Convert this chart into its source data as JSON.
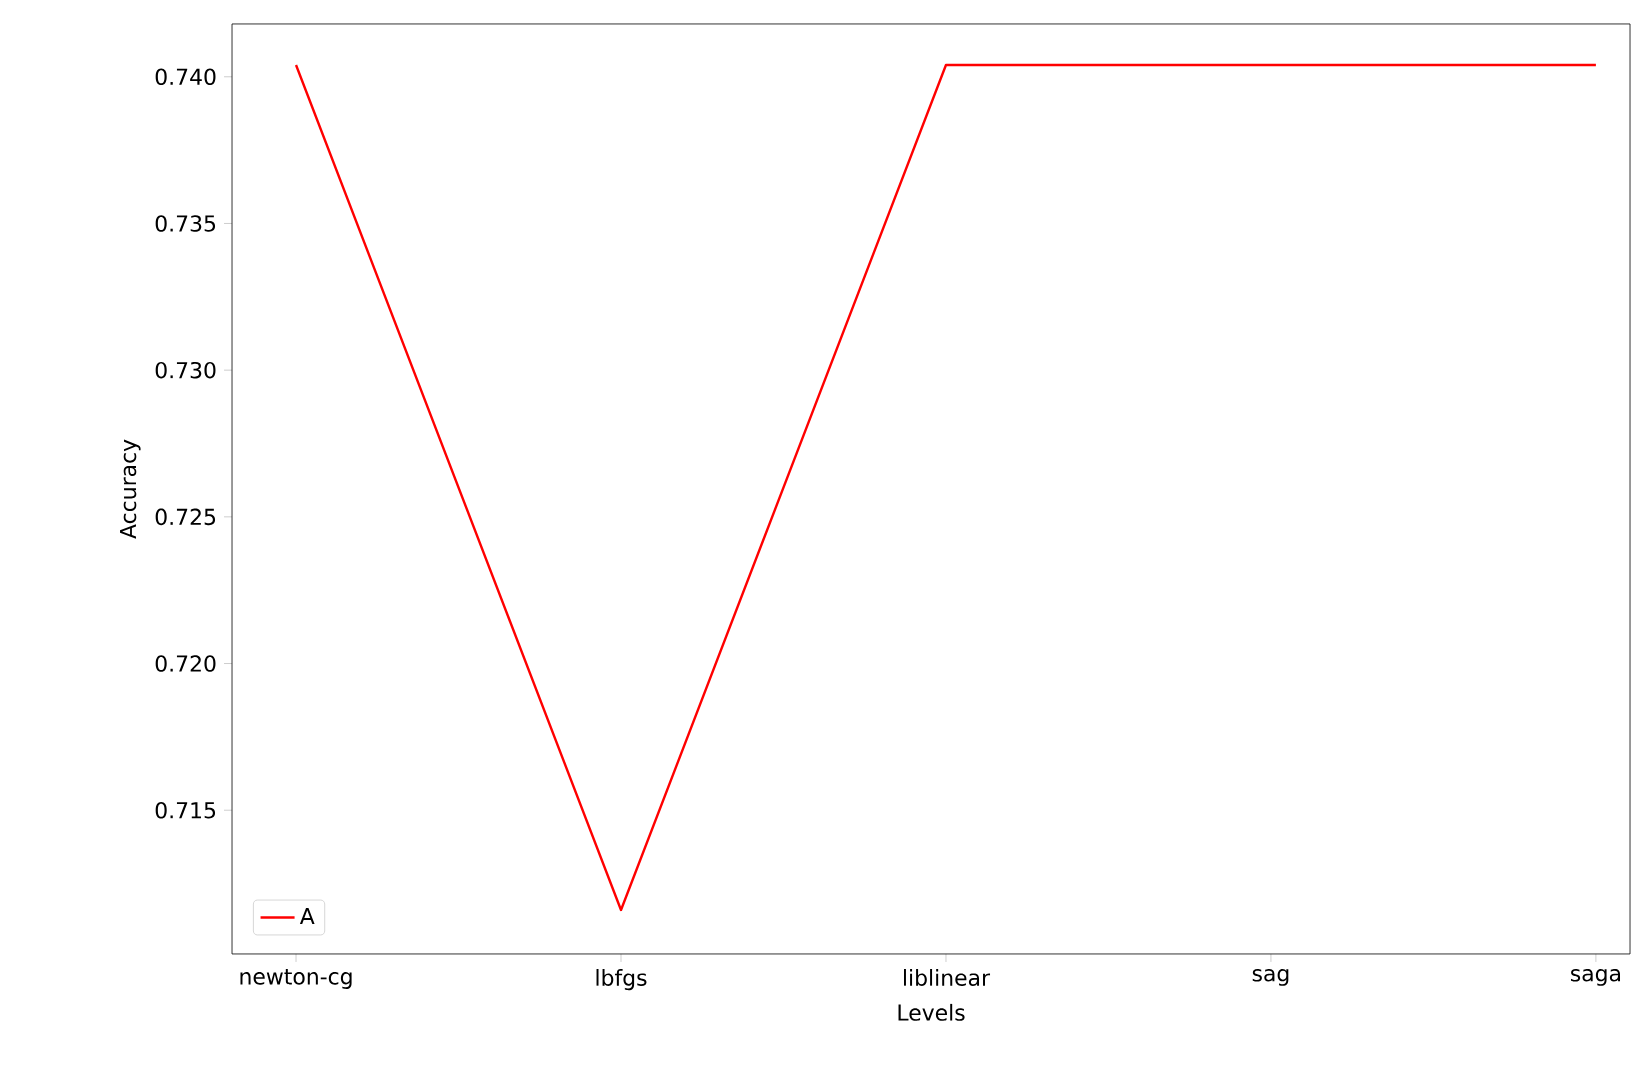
{
  "chart_data": {
    "type": "line",
    "xlabel": "Levels",
    "ylabel": "Accuracy",
    "categories": [
      "newton-cg",
      "lbfgs",
      "liblinear",
      "sag",
      "saga"
    ],
    "series": [
      {
        "name": "A",
        "color": "#ff0000",
        "values": [
          0.7404,
          0.7116,
          0.7404,
          0.7404,
          0.7404
        ]
      }
    ],
    "ylim": [
      0.7101,
      0.7418
    ],
    "yticks": [
      0.715,
      {
        "value": 0.72,
        "label": "0.720"
      },
      0.725,
      {
        "value": 0.73,
        "label": "0.730"
      },
      0.735,
      {
        "value": 0.74,
        "label": "0.740"
      }
    ],
    "legend": "bottom left",
    "grid": false,
    "marker": "none",
    "line_style": "solid"
  }
}
